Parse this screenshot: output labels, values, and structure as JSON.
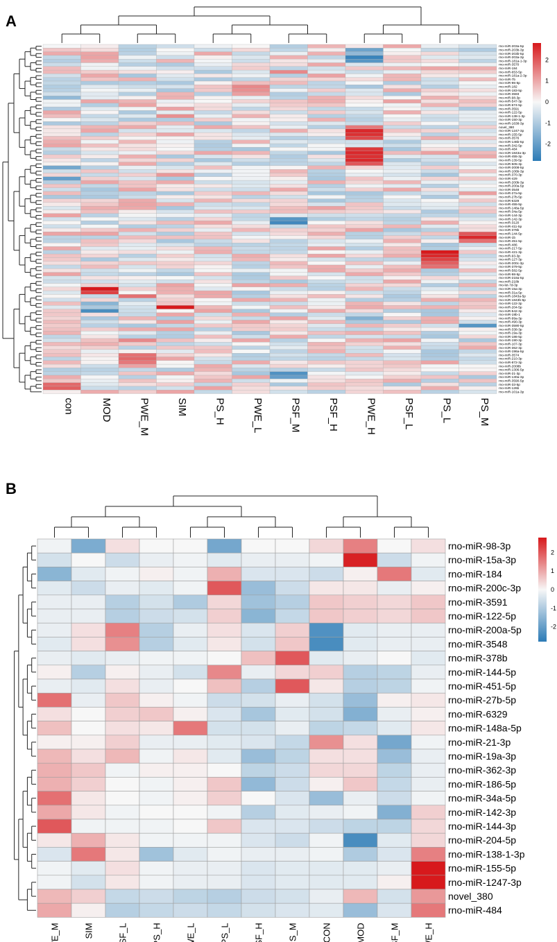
{
  "colors": {
    "low": "#2c7bb6",
    "mid": "#f7f7f7",
    "high": "#d7191c",
    "cell_border": "#9e9e9e"
  },
  "chart_data": [
    {
      "panel": "A",
      "type": "heatmap",
      "title": "",
      "columns": [
        "con",
        "MOD",
        "PWE_M",
        "SIM",
        "PS_H",
        "PWE_L",
        "PSF_M",
        "PSF_H",
        "PWE_H",
        "PSF_L",
        "PS_L",
        "PS_M"
      ],
      "rows": [
        "rno-miR-203a-5p",
        "rno-miR-203b-3p",
        "rno-miR-203b-5p",
        "rno-miR-203a-3p",
        "rno-miR-181a-1-3p",
        "rno-miR-3570",
        "rno-miR-184",
        "rno-miR-653-5p",
        "rno-miR-181a-2-3p",
        "rno-miR-7b",
        "rno-miR-96-5p",
        "rno-miR-182",
        "rno-miR-183-5p",
        "rno-miR-3593",
        "rno-miR-98-3p",
        "rno-miR-547-3p",
        "rno-miR-674-5p",
        "rno-miR-3591",
        "rno-miR-122-5p",
        "rno-miR-138-1-3p",
        "rno-miR-150-3p",
        "rno-miR-1638-3p",
        "novel_380",
        "rno-miR-1247-3p",
        "rno-miR-155-5p",
        "rno-miR-3576",
        "rno-miR-146b-5p",
        "rno-miR-342-5p",
        "rno-miR-484",
        "rno-miR-1843a-3p",
        "rno-miR-455-3p",
        "rno-miR-139-5p",
        "rno-miR-505-3p",
        "rno-miR-2008-5p",
        "rno-miR-106b-3p",
        "rno-miR-370-3p",
        "rno-miR-429",
        "rno-miR-200b-3p",
        "rno-miR-200a-5p",
        "rno-miR-3548",
        "rno-miR-27a-5p",
        "rno-miR-27b-5p",
        "rno-miR-6329",
        "rno-miR-455-5p",
        "rno-miR-148a-5p",
        "rno-miR-34a-5p",
        "rno-miR-144-3p",
        "rno-miR-142-3p",
        "rno-miR-3120",
        "rno-miR-411-5p",
        "rno-miR-378b",
        "rno-miR-144-5p",
        "rno-miR-1b",
        "rno-miR-451-5p",
        "rno-miR-486",
        "rno-miR-217-5p",
        "rno-miR-421-3p",
        "rno-miR-93-3p",
        "rno-miR-127-3p",
        "rno-miR-200c-3p",
        "rno-miR-379-5p",
        "rno-miR-582-5p",
        "rno-miR-98-5p",
        "rno-miR-218a-5p",
        "rno-miR-218b",
        "rno-let-7d-3p",
        "rno-miR-15a-3p",
        "rno-miR-31a-5p",
        "rno-miR-1843a-5p",
        "rno-miR-1843b-5p",
        "rno-miR-122-3p",
        "rno-miR-204-5p",
        "rno-miR-542-3p",
        "rno-miR-19b-1",
        "rno-miR-99a-3p",
        "rno-miR-490-3p",
        "rno-miR-3590-5p",
        "rno-miR-338-3p",
        "rno-miR-19a-3p",
        "rno-miR-186-5p",
        "rno-miR-190-3p",
        "rno-miR-107-3p",
        "rno-miR-362-3p",
        "rno-miR-196a-5p",
        "rno-miR-3574",
        "rno-miR-210-3p",
        "rno-miR-872-3p",
        "rno-miR-2008b",
        "rno-miR-1306-5p",
        "rno-miR-21-3p",
        "rno-miR-130a-3p",
        "rno-miR-3590-5p",
        "rno-miR-33-5p",
        "rno-miR-126b",
        "rno-miR-101a-3p"
      ],
      "highlights": [
        [
          3,
          8,
          -2.6
        ],
        [
          4,
          8,
          -2.2
        ],
        [
          1,
          8,
          -1.9
        ],
        [
          2,
          8,
          -1.4
        ],
        [
          0,
          9,
          1.0
        ],
        [
          2,
          7,
          0.9
        ],
        [
          3,
          6,
          0.9
        ],
        [
          11,
          5,
          1.4
        ],
        [
          12,
          5,
          1.3
        ],
        [
          13,
          5,
          1.1
        ],
        [
          7,
          6,
          1.4
        ],
        [
          23,
          8,
          2.6
        ],
        [
          24,
          8,
          2.5
        ],
        [
          25,
          8,
          2.2
        ],
        [
          28,
          8,
          2.4
        ],
        [
          29,
          8,
          2.6
        ],
        [
          30,
          8,
          2.5
        ],
        [
          31,
          8,
          2.6
        ],
        [
          32,
          8,
          2.0
        ],
        [
          19,
          3,
          1.3
        ],
        [
          22,
          8,
          1.6
        ],
        [
          47,
          6,
          -2.2
        ],
        [
          48,
          6,
          -2.5
        ],
        [
          51,
          11,
          2.0
        ],
        [
          52,
          11,
          2.6
        ],
        [
          53,
          11,
          1.7
        ],
        [
          56,
          10,
          2.8
        ],
        [
          57,
          10,
          2.6
        ],
        [
          58,
          10,
          2.3
        ],
        [
          59,
          10,
          1.9
        ],
        [
          60,
          10,
          1.7
        ],
        [
          66,
          1,
          2.8
        ],
        [
          67,
          1,
          2.3
        ],
        [
          68,
          2,
          1.7
        ],
        [
          71,
          3,
          2.8
        ],
        [
          72,
          1,
          -2.4
        ],
        [
          70,
          1,
          -1.5
        ],
        [
          80,
          2,
          1.4
        ],
        [
          84,
          2,
          1.7
        ],
        [
          85,
          2,
          1.8
        ],
        [
          86,
          2,
          1.6
        ],
        [
          89,
          6,
          -2.3
        ],
        [
          90,
          6,
          -2.0
        ],
        [
          92,
          0,
          1.8
        ],
        [
          93,
          0,
          1.9
        ],
        [
          76,
          11,
          -2.2
        ],
        [
          74,
          8,
          -1.6
        ],
        [
          39,
          9,
          1.0
        ],
        [
          35,
          3,
          1.2
        ],
        [
          14,
          0,
          -1.4
        ],
        [
          33,
          0,
          -1.8
        ],
        [
          36,
          0,
          -2.0
        ]
      ],
      "legend": {
        "ticks": [
          2,
          1,
          0,
          -1,
          -2
        ],
        "range": [
          -2.8,
          2.8
        ]
      }
    },
    {
      "panel": "B",
      "type": "heatmap",
      "title": "",
      "columns": [
        "PWE_M",
        "SIM",
        "PSF_L",
        "PS_H",
        "PWE_L",
        "PS_L",
        "PSF_H",
        "PS_M",
        "CON",
        "MOD",
        "PSF_M",
        "PWE_H"
      ],
      "rows": [
        "rno-miR-98-3p",
        "rno-miR-15a-3p",
        "rno-miR-184",
        "rno-miR-200c-3p",
        "rno-miR-3591",
        "rno-miR-122-5p",
        "rno-miR-200a-5p",
        "rno-miR-3548",
        "rno-miR-378b",
        "rno-miR-144-5p",
        "rno-miR-451-5p",
        "rno-miR-27b-5p",
        "rno-miR-6329",
        "rno-miR-148a-5p",
        "rno-miR-21-3p",
        "rno-miR-19a-3p",
        "rno-miR-362-3p",
        "rno-miR-186-5p",
        "rno-miR-34a-5p",
        "rno-miR-142-3p",
        "rno-miR-144-3p",
        "rno-miR-204-5p",
        "rno-miR-138-1-3p",
        "rno-miR-155-5p",
        "rno-miR-1247-3p",
        "novel_380",
        "rno-miR-484"
      ],
      "values": [
        [
          -0.1,
          -1.7,
          0.3,
          0.0,
          0.0,
          -1.8,
          0.0,
          0.0,
          0.4,
          1.5,
          0.0,
          0.3
        ],
        [
          -0.5,
          0.0,
          -0.6,
          -0.2,
          -0.1,
          -0.3,
          -0.2,
          -0.2,
          -0.1,
          2.7,
          -0.6,
          -0.1
        ],
        [
          -1.5,
          -0.3,
          -0.1,
          0.1,
          -0.1,
          0.9,
          -0.4,
          -0.4,
          -0.6,
          0.1,
          1.6,
          -0.3
        ],
        [
          -0.3,
          -0.6,
          -0.2,
          -0.3,
          -0.1,
          2.0,
          -1.3,
          -0.6,
          0.2,
          0.2,
          -0.2,
          0.1
        ],
        [
          -0.2,
          -0.2,
          -0.9,
          -0.5,
          -1.0,
          0.4,
          -1.2,
          -0.9,
          0.6,
          0.5,
          0.4,
          0.6
        ],
        [
          -0.2,
          -0.2,
          -0.9,
          -0.6,
          -0.5,
          0.5,
          -1.5,
          -0.7,
          0.6,
          0.5,
          0.4,
          0.6
        ],
        [
          -0.2,
          0.3,
          1.5,
          -0.9,
          -0.2,
          0.3,
          -0.4,
          0.5,
          -2.3,
          -0.3,
          -0.2,
          -0.2
        ],
        [
          -0.3,
          0.3,
          1.3,
          -0.9,
          -0.3,
          0.2,
          -0.5,
          0.6,
          -2.4,
          -0.3,
          -0.2,
          -0.2
        ],
        [
          -0.2,
          -0.3,
          -0.2,
          -0.1,
          -0.1,
          0.0,
          0.7,
          2.0,
          -0.3,
          -0.2,
          0.0,
          -0.3
        ],
        [
          0.1,
          -0.9,
          0.1,
          -0.2,
          -0.5,
          1.4,
          -0.2,
          0.4,
          0.5,
          -0.9,
          -0.8,
          -0.2
        ],
        [
          -0.2,
          -0.3,
          0.3,
          -0.2,
          0.0,
          0.7,
          -0.9,
          2.0,
          0.2,
          -0.9,
          -0.8,
          -0.1
        ],
        [
          1.7,
          -0.2,
          0.6,
          0.1,
          -0.1,
          -0.6,
          -0.5,
          -0.2,
          -0.5,
          -1.3,
          0.1,
          0.2
        ],
        [
          0.3,
          0.0,
          0.5,
          0.6,
          0.1,
          -0.4,
          -1.1,
          -0.3,
          -0.5,
          -1.6,
          -0.2,
          0.1
        ],
        [
          0.7,
          0.0,
          0.3,
          0.2,
          1.6,
          -0.5,
          -0.5,
          -0.2,
          -0.8,
          -0.7,
          -0.3,
          0.2
        ],
        [
          0.1,
          0.1,
          0.5,
          -0.2,
          -0.2,
          -0.3,
          -0.4,
          -0.7,
          1.3,
          0.3,
          -1.8,
          -0.1
        ],
        [
          0.8,
          0.3,
          0.8,
          -0.1,
          0.2,
          -0.3,
          -1.3,
          -0.8,
          0.3,
          0.3,
          -1.3,
          -0.2
        ],
        [
          0.9,
          0.6,
          -0.1,
          0.1,
          0.1,
          0.0,
          -0.8,
          -0.6,
          0.4,
          0.4,
          -0.8,
          -0.2
        ],
        [
          0.9,
          0.5,
          0.0,
          -0.1,
          0.1,
          0.6,
          -1.4,
          -0.6,
          0.1,
          0.6,
          -0.7,
          -0.2
        ],
        [
          1.7,
          0.2,
          0.0,
          -0.1,
          0.1,
          0.5,
          0.0,
          -0.4,
          -1.3,
          -0.2,
          -0.6,
          -0.1
        ],
        [
          1.0,
          0.2,
          -0.1,
          0.0,
          0.0,
          -0.1,
          -0.9,
          -0.3,
          -0.2,
          -0.1,
          -1.6,
          0.5
        ],
        [
          2.0,
          -0.1,
          -0.1,
          -0.1,
          0.0,
          0.6,
          -0.4,
          -0.4,
          -0.6,
          -0.8,
          -0.8,
          0.4
        ],
        [
          0.2,
          0.9,
          0.2,
          -0.1,
          -0.1,
          -0.1,
          -0.4,
          -0.6,
          -0.1,
          -2.4,
          -0.3,
          0.4
        ],
        [
          -0.4,
          1.6,
          0.2,
          -1.2,
          -0.3,
          -0.1,
          -0.2,
          -0.2,
          -0.1,
          -1.0,
          -0.4,
          1.5
        ],
        [
          -0.1,
          -0.3,
          0.3,
          -0.1,
          -0.2,
          -0.2,
          -0.4,
          -0.3,
          -0.3,
          -0.3,
          -0.2,
          2.8
        ],
        [
          -0.1,
          -0.5,
          0.2,
          -0.1,
          -0.2,
          -0.2,
          -0.4,
          -0.3,
          -0.3,
          -0.3,
          0.1,
          2.8
        ],
        [
          0.8,
          0.5,
          -0.7,
          -0.6,
          -0.8,
          -0.9,
          -0.6,
          -0.5,
          -0.2,
          0.8,
          -0.5,
          1.2
        ],
        [
          1.0,
          0.1,
          -0.9,
          -0.7,
          -0.6,
          -0.7,
          -0.5,
          -0.4,
          -0.3,
          -1.3,
          -0.4,
          1.6
        ]
      ],
      "legend": {
        "ticks": [
          2,
          1,
          0,
          -1,
          -2
        ],
        "range": [
          -2.8,
          2.8
        ]
      }
    }
  ]
}
